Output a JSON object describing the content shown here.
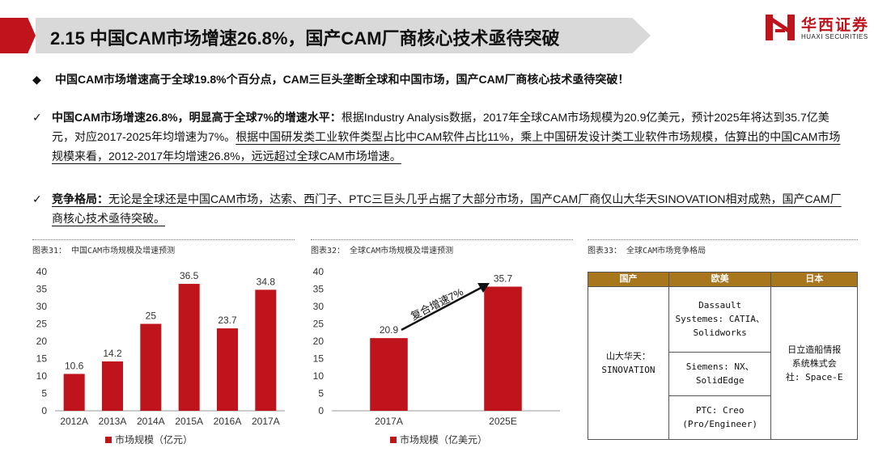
{
  "header": {
    "title": "2.15 中国CAM市场增速26.8%，国产CAM厂商核心技术亟待突破",
    "logo_cn": "华西证券",
    "logo_en": "HUAXI SECURITIES"
  },
  "bullet1": {
    "symbol": "◆",
    "text": "中国CAM市场增速高于全球19.8%个百分点，CAM三巨头垄断全球和中国市场，国产CAM厂商核心技术亟待突破！"
  },
  "para1": {
    "check": "✓",
    "bold": "中国CAM市场增速26.8%，明显高于全球7%的增速水平：",
    "normal": "根据Industry  Analysis数据，2017年全球CAM市场规模为20.9亿美元，预计2025年将达到35.7亿美元，对应2017-2025年均增速为7%。",
    "underlined": "根据中国研发类工业软件类型占比中CAM软件占比11%，乘上中国研发设计类工业软件市场规模，估算出的中国CAM市场规模来看，2012-2017年均增速26.8%，远远超过全球CAM市场增速。"
  },
  "para2": {
    "check": "✓",
    "bold": "竞争格局：",
    "text": "无论是全球还是中国CAM市场，达索、西门子、PTC三巨头几乎占据了大部分市场，国产CAM厂商仅山大华天SINOVATION相对成熟，国产CAM厂商核心技术亟待突破。"
  },
  "captions": {
    "fig31": "图表31： 中国CAM市场规模及增速预测",
    "fig32": "图表32： 全球CAM市场规模及增速预测",
    "fig33": "图表33： 全球CAM市场竞争格局"
  },
  "chart_data": [
    {
      "type": "bar",
      "categories": [
        "2012A",
        "2013A",
        "2014A",
        "2015A",
        "2016A",
        "2017A"
      ],
      "series": [
        {
          "name": "市场规模（亿元）",
          "values": [
            10.6,
            14.2,
            25,
            36.5,
            23.7,
            34.8
          ]
        }
      ],
      "data_labels": [
        "10.6",
        "14.2",
        "25",
        "36.5",
        "23.7",
        "34.8"
      ],
      "ylim": [
        0,
        40
      ],
      "yticks": [
        0,
        5,
        10,
        15,
        20,
        25,
        30,
        35,
        40
      ],
      "legend": "bottom",
      "color": "#c0141c"
    },
    {
      "type": "bar",
      "categories": [
        "2017A",
        "2025E"
      ],
      "series": [
        {
          "name": "市场规模（亿美元）",
          "values": [
            20.9,
            35.7
          ]
        }
      ],
      "data_labels": [
        "20.9",
        "35.7"
      ],
      "ylim": [
        0,
        40
      ],
      "yticks": [
        0,
        5,
        10,
        15,
        20,
        25,
        30,
        35,
        40
      ],
      "legend": "bottom",
      "annotation": "复合增速7%",
      "color": "#c0141c"
    }
  ],
  "table": {
    "headers": [
      "国产",
      "欧美",
      "日本"
    ],
    "domestic": [
      "山大华天：",
      "SINOVATION"
    ],
    "western": [
      [
        "Dassault",
        "Systemes: CATIA、",
        "Solidworks"
      ],
      [
        "Siemens: NX、",
        "SolidEdge"
      ],
      [
        "PTC: Creo",
        "(Pro/Engineer)"
      ]
    ],
    "japan": [
      "日立造船情报",
      "系统株式会",
      "社: Space-E"
    ],
    "header_color": "#a8761d"
  }
}
